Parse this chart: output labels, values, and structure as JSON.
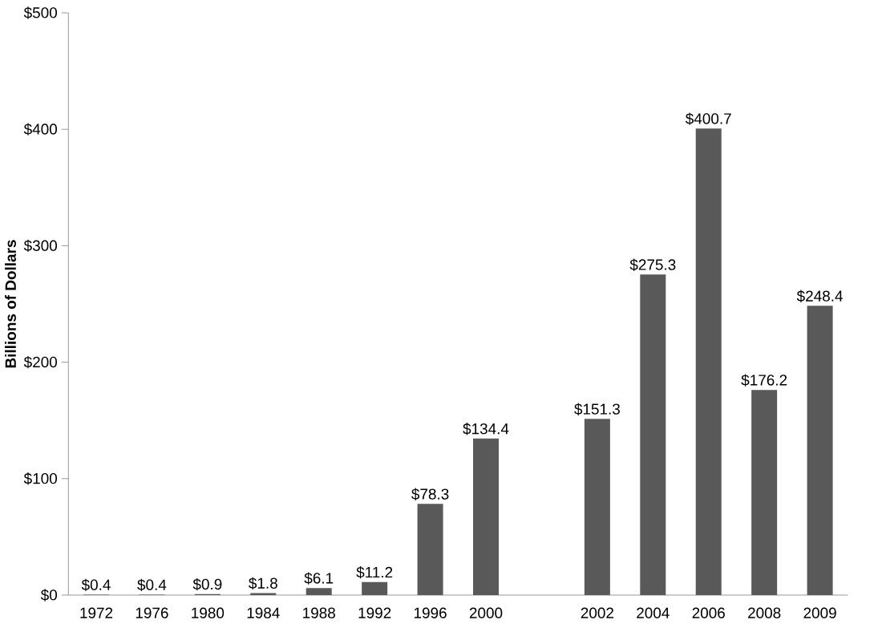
{
  "chart_data": {
    "type": "bar",
    "ylabel": "Billions of Dollars",
    "categories": [
      "1972",
      "1976",
      "1980",
      "1984",
      "1988",
      "1992",
      "1996",
      "2000",
      null,
      "2002",
      "2004",
      "2006",
      "2008",
      "2009"
    ],
    "values": [
      0.4,
      0.4,
      0.9,
      1.8,
      6.1,
      11.2,
      78.3,
      134.4,
      null,
      151.3,
      275.3,
      400.7,
      176.2,
      248.4
    ],
    "value_labels": [
      "$0.4",
      "$0.4",
      "$0.9",
      "$1.8",
      "$6.1",
      "$11.2",
      "$78.3",
      "$134.4",
      null,
      "$151.3",
      "$275.3",
      "$400.7",
      "$176.2",
      "$248.4"
    ],
    "color": "#595959",
    "ylim": [
      0,
      500
    ],
    "yticks": [
      {
        "value": 0,
        "label": "$0"
      },
      {
        "value": 100,
        "label": "$100"
      },
      {
        "value": 200,
        "label": "$200"
      },
      {
        "value": 300,
        "label": "$300"
      },
      {
        "value": 400,
        "label": "$400"
      },
      {
        "value": 500,
        "label": "$500"
      }
    ],
    "grid": false
  }
}
